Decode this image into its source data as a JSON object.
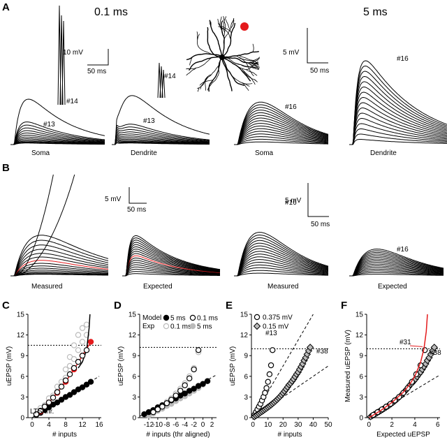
{
  "panel_a": {
    "letter": "A",
    "fast": "0.1 ms",
    "slow": "5 ms",
    "scale_fast_v": "10 mV",
    "scale_fast_t": "50 ms",
    "scale_slow_v": "5 mV",
    "scale_slow_t": "50 ms",
    "annotations": [
      "#14",
      "#13",
      "#14",
      "#13",
      "#16",
      "#16"
    ],
    "captions": [
      "Soma",
      "Dendrite",
      "Soma",
      "Dendrite"
    ]
  },
  "panel_b": {
    "letter": "B",
    "scale1_v": "5 mV",
    "scale1_t": "50 ms",
    "scale2_v": "5 mV",
    "scale2_t": "50 ms",
    "annotations": [
      "#16",
      "#16"
    ],
    "captions": [
      "Measured",
      "Expected",
      "Measured",
      "Expected"
    ]
  },
  "chart_data": [
    {
      "type": "scatter",
      "letter": "C",
      "x_label": "# inputs",
      "y_label": "uEPSP (mV)",
      "xlim": [
        -1,
        16.5
      ],
      "ylim": [
        0,
        15
      ],
      "xticks": [
        0,
        4,
        8,
        12,
        16
      ],
      "yticks": [
        0,
        3,
        6,
        9,
        12,
        15
      ],
      "threshold": 10.5,
      "annotations": [
        {
          "text": "LTS thr.",
          "color": "#000"
        }
      ],
      "series": [
        {
          "kind": "points",
          "marker": "circle",
          "color": "#bbb",
          "filled": false,
          "x": [
            1,
            2,
            2,
            3,
            4,
            4,
            5,
            6,
            6,
            7,
            8,
            8,
            9,
            9,
            10,
            10,
            11,
            11,
            12,
            12,
            13,
            13
          ],
          "values": [
            0.5,
            1.0,
            1.4,
            1.8,
            2.3,
            2.8,
            3.2,
            3.8,
            4.5,
            5.2,
            5.8,
            7.0,
            7.5,
            8.8,
            8.5,
            10.5,
            9.8,
            12,
            11,
            13,
            12,
            13.5
          ]
        },
        {
          "kind": "line",
          "color": "#000",
          "dash": true,
          "x": [
            0,
            16
          ],
          "values": [
            0,
            6
          ]
        },
        {
          "kind": "points",
          "marker": "circle",
          "color": "#000",
          "filled": true,
          "x": [
            1,
            2,
            3,
            4,
            5,
            6,
            7,
            8,
            9,
            10,
            11,
            12,
            13,
            14
          ],
          "values": [
            0.4,
            0.7,
            1.1,
            1.5,
            1.9,
            2.2,
            2.6,
            3.0,
            3.3,
            3.7,
            4.1,
            4.4,
            4.8,
            5.2
          ]
        },
        {
          "kind": "line",
          "color": "#e41a1c",
          "dash": false,
          "x": [
            2,
            4,
            6,
            8,
            10,
            12,
            14
          ],
          "values": [
            0.9,
            2.2,
            3.6,
            5.2,
            7.0,
            9.0,
            11.0
          ]
        },
        {
          "kind": "points",
          "marker": "circle",
          "color": "#e41a1c",
          "filled": true,
          "x": [
            2,
            4,
            6,
            8,
            10,
            12,
            14
          ],
          "values": [
            0.9,
            2.2,
            3.6,
            5.2,
            7.0,
            9.0,
            11.0
          ]
        },
        {
          "kind": "line",
          "color": "#000",
          "dash": false,
          "x": [
            11,
            12,
            13,
            13.6,
            13.8
          ],
          "values": [
            7.2,
            8.1,
            9.8,
            13,
            15
          ]
        },
        {
          "kind": "points",
          "marker": "circle",
          "color": "#000",
          "filled": false,
          "x": [
            1,
            2,
            3,
            4,
            5,
            6,
            7,
            8,
            9,
            10,
            11,
            12,
            13
          ],
          "values": [
            0.5,
            1.0,
            1.6,
            2.2,
            2.9,
            3.7,
            4.5,
            5.4,
            6.3,
            7.2,
            8.1,
            9.0,
            9.8
          ]
        }
      ]
    },
    {
      "type": "scatter",
      "letter": "D",
      "x_label": "# inputs (thr aligned)",
      "y_label": "uEPSP (mV)",
      "xlim": [
        -14,
        3
      ],
      "ylim": [
        0,
        15
      ],
      "xticks": [
        -12,
        -10,
        -8,
        -6,
        -4,
        -2,
        0,
        2
      ],
      "yticks": [
        0,
        3,
        6,
        9,
        12,
        15
      ],
      "threshold": 10.2,
      "legend_rows": [
        "Model",
        "Exp"
      ],
      "annotations": [],
      "series": [
        {
          "kind": "line",
          "color": "#000",
          "dash": true,
          "x": [
            -14,
            3
          ],
          "values": [
            0.2,
            6.2
          ]
        },
        {
          "name": "0.1 ms",
          "row": 1,
          "kind": "points",
          "marker": "circle",
          "color": "#bbb",
          "filled": false,
          "x": [
            -12,
            -11,
            -10,
            -9,
            -8,
            -7,
            -6,
            -5,
            -4,
            -3,
            -2,
            -1
          ],
          "values": [
            0.5,
            0.9,
            1.3,
            1.8,
            2.3,
            2.8,
            3.5,
            4.2,
            5.0,
            6.0,
            7.2,
            9.5
          ]
        },
        {
          "name": "5 ms",
          "row": 1,
          "kind": "points",
          "marker": "circle",
          "color": "#bbb",
          "filled": true,
          "x": [
            -12,
            -11,
            -10,
            -9,
            -8,
            -7,
            -6,
            -5,
            -4,
            -3,
            -2,
            -1,
            0,
            1
          ],
          "values": [
            0.3,
            0.6,
            1.0,
            1.3,
            1.7,
            2.0,
            2.4,
            2.8,
            3.1,
            3.5,
            3.9,
            4.3,
            4.8,
            5.3
          ]
        },
        {
          "name": "5 ms",
          "row": 0,
          "kind": "points",
          "marker": "circle",
          "color": "#000",
          "filled": true,
          "x": [
            -13,
            -12,
            -11,
            -10,
            -9,
            -8,
            -7,
            -6,
            -5,
            -4,
            -3,
            -2,
            -1,
            0,
            1
          ],
          "values": [
            0.5,
            0.8,
            1.1,
            1.5,
            1.8,
            2.1,
            2.5,
            2.8,
            3.2,
            3.5,
            3.9,
            4.2,
            4.6,
            4.9,
            5.3
          ]
        },
        {
          "name": "0.1 ms",
          "row": 0,
          "kind": "points",
          "marker": "circle",
          "color": "#000",
          "filled": false,
          "x": [
            -11,
            -10,
            -9,
            -8,
            -7,
            -6,
            -5,
            -4,
            -3,
            -2,
            -1
          ],
          "values": [
            0.8,
            1.2,
            1.6,
            2.1,
            2.6,
            3.2,
            3.9,
            4.7,
            5.7,
            7.0,
            9.8
          ]
        }
      ]
    },
    {
      "type": "scatter",
      "letter": "E",
      "x_label": "# inputs",
      "y_label": "uEPSP (mV)",
      "xlim": [
        -1,
        50
      ],
      "ylim": [
        0,
        15
      ],
      "xticks": [
        0,
        10,
        20,
        30,
        40,
        50
      ],
      "yticks": [
        0,
        3,
        6,
        9,
        12,
        15
      ],
      "threshold": 10,
      "annotations": [
        {
          "text": "#13",
          "color": "#000"
        },
        {
          "text": "#38",
          "color": "#000"
        }
      ],
      "series": [
        {
          "kind": "line",
          "color": "#000",
          "dash": true,
          "x": [
            0,
            40
          ],
          "values": [
            0,
            15
          ]
        },
        {
          "kind": "line",
          "color": "#000",
          "dash": true,
          "x": [
            0,
            50
          ],
          "values": [
            0,
            7.5
          ]
        },
        {
          "name": "0.375 mV",
          "kind": "points",
          "marker": "circle",
          "color": "#000",
          "filled": false,
          "x": [
            1,
            2,
            3,
            4,
            5,
            6,
            7,
            8,
            9,
            10,
            11,
            12,
            13
          ],
          "values": [
            0.4,
            0.8,
            1.2,
            1.6,
            2.0,
            2.5,
            3.0,
            3.6,
            4.3,
            5.2,
            6.3,
            7.6,
            9.8
          ]
        },
        {
          "name": "0.15 mV",
          "kind": "points",
          "marker": "diamond",
          "color": "#000",
          "filled": false,
          "fill": "#bbb",
          "x": [
            1,
            2,
            3,
            4,
            5,
            6,
            7,
            8,
            9,
            10,
            11,
            12,
            13,
            14,
            15,
            16,
            17,
            18,
            19,
            20,
            21,
            22,
            23,
            24,
            25,
            26,
            27,
            28,
            29,
            30,
            31,
            32,
            33,
            34,
            35,
            36,
            37,
            38
          ],
          "values": [
            0.15,
            0.3,
            0.45,
            0.6,
            0.75,
            0.9,
            1.05,
            1.2,
            1.36,
            1.52,
            1.68,
            1.85,
            2.03,
            2.21,
            2.41,
            2.62,
            2.84,
            3.07,
            3.31,
            3.57,
            3.85,
            4.14,
            4.45,
            4.78,
            5.0,
            5.3,
            5.6,
            5.95,
            6.3,
            6.6,
            7.0,
            7.4,
            7.8,
            8.3,
            8.7,
            9.2,
            9.7,
            10.2
          ]
        }
      ]
    },
    {
      "type": "scatter",
      "letter": "F",
      "x_label": "Expected uEPSP",
      "y_label": "Measured uEPSP (mV)",
      "xlim": [
        -0.2,
        6.2
      ],
      "ylim": [
        0,
        15
      ],
      "xticks": [
        0,
        2,
        4,
        6
      ],
      "yticks": [
        0,
        3,
        6,
        9,
        12,
        15
      ],
      "threshold": 10,
      "annotations": [
        {
          "text": "#31",
          "color": "#e41a1c"
        },
        {
          "text": "#38",
          "color": "#000"
        }
      ],
      "series": [
        {
          "kind": "line",
          "color": "#000",
          "dash": true,
          "x": [
            0,
            6.2
          ],
          "values": [
            0,
            6.2
          ]
        },
        {
          "kind": "points",
          "marker": "diamond",
          "color": "#000",
          "filled": false,
          "fill": "#bbb",
          "x": [
            0.15,
            0.3,
            0.45,
            0.6,
            0.75,
            0.9,
            1.05,
            1.2,
            1.35,
            1.5,
            1.65,
            1.8,
            1.95,
            2.1,
            2.25,
            2.4,
            2.55,
            2.7,
            2.85,
            3.0,
            3.15,
            3.3,
            3.45,
            3.6,
            3.75,
            3.9,
            4.05,
            4.2,
            4.35,
            4.5,
            4.65,
            4.8,
            4.95,
            5.1,
            5.25,
            5.4,
            5.55,
            5.7
          ],
          "values": [
            0.15,
            0.3,
            0.45,
            0.6,
            0.75,
            0.9,
            1.05,
            1.2,
            1.36,
            1.52,
            1.68,
            1.85,
            2.03,
            2.21,
            2.41,
            2.62,
            2.84,
            3.07,
            3.31,
            3.57,
            3.85,
            4.14,
            4.45,
            4.78,
            5.0,
            5.3,
            5.6,
            5.95,
            6.3,
            6.6,
            7.0,
            7.4,
            7.8,
            8.3,
            8.7,
            9.2,
            9.7,
            10.2
          ]
        },
        {
          "kind": "points",
          "marker": "circle",
          "color": "#000",
          "filled": false,
          "x": [
            0.375,
            0.75,
            1.125,
            1.5,
            1.875,
            2.25,
            2.625,
            3.0,
            3.375,
            3.75,
            4.125,
            4.5,
            4.875
          ],
          "values": [
            0.4,
            0.8,
            1.2,
            1.6,
            2.0,
            2.5,
            3.0,
            3.6,
            4.3,
            5.2,
            6.3,
            7.6,
            9.8
          ]
        },
        {
          "kind": "line",
          "color": "#e41a1c",
          "dash": false,
          "x": [
            0,
            1,
            2,
            3,
            3.5,
            4,
            4.5,
            4.8,
            5,
            5.1
          ],
          "values": [
            0,
            1,
            2.2,
            3.7,
            4.7,
            6,
            8,
            10,
            12.5,
            15
          ]
        }
      ]
    }
  ]
}
